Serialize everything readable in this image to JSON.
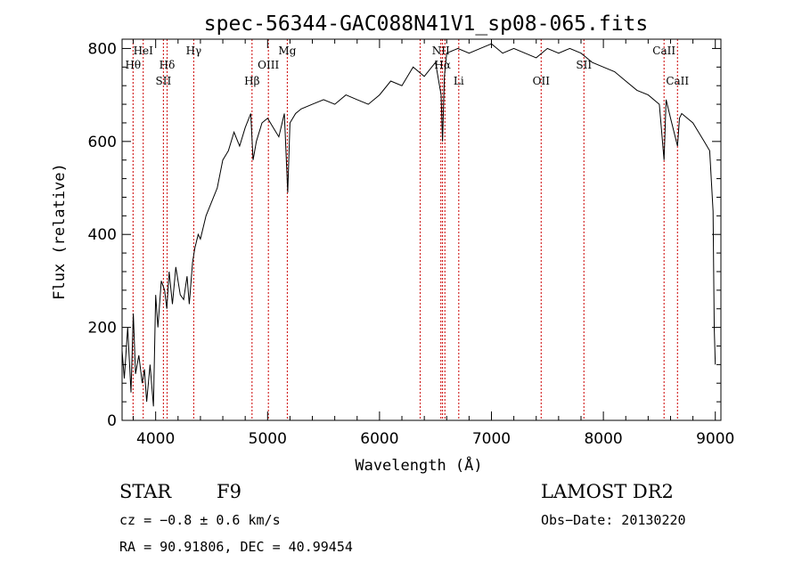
{
  "chart_data": {
    "type": "line",
    "title": "spec-56344-GAC088N41V1_sp08-065.fits",
    "xlabel": "Wavelength (Å)",
    "ylabel": "Flux (relative)",
    "xlim": [
      3700,
      9050
    ],
    "ylim": [
      0,
      820
    ],
    "x_ticks": [
      4000,
      5000,
      6000,
      7000,
      8000,
      9000
    ],
    "y_ticks": [
      0,
      200,
      400,
      600,
      800
    ],
    "grid": false,
    "series": [
      {
        "x": [
          3700,
          3720,
          3750,
          3780,
          3800,
          3820,
          3850,
          3880,
          3900,
          3920,
          3950,
          3980,
          4000,
          4020,
          4050,
          4080,
          4100,
          4120,
          4150,
          4180,
          4200,
          4220,
          4250,
          4280,
          4300,
          4330,
          4350,
          4380,
          4400,
          4450,
          4500,
          4550,
          4600,
          4650,
          4700,
          4750,
          4800,
          4850,
          4870,
          4900,
          4950,
          5000,
          5050,
          5100,
          5150,
          5180,
          5200,
          5250,
          5300,
          5400,
          5500,
          5600,
          5700,
          5800,
          5900,
          6000,
          6100,
          6200,
          6300,
          6400,
          6500,
          6550,
          6563,
          6580,
          6600,
          6700,
          6800,
          6900,
          7000,
          7100,
          7200,
          7300,
          7400,
          7500,
          7600,
          7700,
          7800,
          7850,
          7900,
          8000,
          8100,
          8200,
          8300,
          8400,
          8500,
          8542,
          8560,
          8600,
          8662,
          8680,
          8700,
          8750,
          8800,
          8850,
          8900,
          8950,
          8980,
          8990,
          9000
        ],
        "y": [
          150,
          90,
          200,
          60,
          230,
          100,
          140,
          80,
          110,
          40,
          120,
          30,
          270,
          200,
          300,
          280,
          240,
          320,
          250,
          330,
          300,
          270,
          260,
          310,
          250,
          340,
          370,
          400,
          390,
          440,
          470,
          500,
          560,
          580,
          620,
          590,
          630,
          660,
          560,
          600,
          640,
          650,
          630,
          610,
          660,
          490,
          640,
          660,
          670,
          680,
          690,
          680,
          700,
          690,
          680,
          700,
          730,
          720,
          760,
          740,
          770,
          700,
          600,
          740,
          790,
          800,
          790,
          800,
          810,
          790,
          800,
          790,
          780,
          800,
          790,
          800,
          790,
          780,
          770,
          760,
          750,
          730,
          710,
          700,
          680,
          560,
          690,
          650,
          590,
          650,
          660,
          650,
          640,
          620,
          600,
          580,
          450,
          200,
          120
        ]
      }
    ],
    "line_markers": [
      {
        "label": "Hθ",
        "x": 3798,
        "row": 2
      },
      {
        "label": "HeI",
        "x": 3889,
        "row": 1
      },
      {
        "label": "SII",
        "x": 4069,
        "row": 3
      },
      {
        "label": "Hδ",
        "x": 4102,
        "row": 2
      },
      {
        "label": "Hγ",
        "x": 4340,
        "row": 1
      },
      {
        "label": "Hβ",
        "x": 4861,
        "row": 3
      },
      {
        "label": "OIII",
        "x": 5007,
        "row": 2
      },
      {
        "label": "Mg",
        "x": 5176,
        "row": 1
      },
      {
        "label": "",
        "x": 6363,
        "row": 0
      },
      {
        "label": "NII",
        "x": 6548,
        "row": 1
      },
      {
        "label": "Hα",
        "x": 6563,
        "row": 2
      },
      {
        "label": "",
        "x": 6584,
        "row": 0
      },
      {
        "label": "Li",
        "x": 6708,
        "row": 3
      },
      {
        "label": "OII",
        "x": 7444,
        "row": 3
      },
      {
        "label": "SII",
        "x": 7826,
        "row": 2
      },
      {
        "label": "CaII",
        "x": 8542,
        "row": 1
      },
      {
        "label": "CaII",
        "x": 8662,
        "row": 3
      }
    ],
    "marker_color": "#cc0000"
  },
  "info": {
    "object_class": "STAR",
    "subclass": "F9",
    "survey": "LAMOST DR2",
    "cz": "cz = −0.8 ± 0.6 km/s",
    "obs_date": "Obs−Date: 20130220",
    "radec": "RA =  90.91806, DEC =  40.99454"
  }
}
